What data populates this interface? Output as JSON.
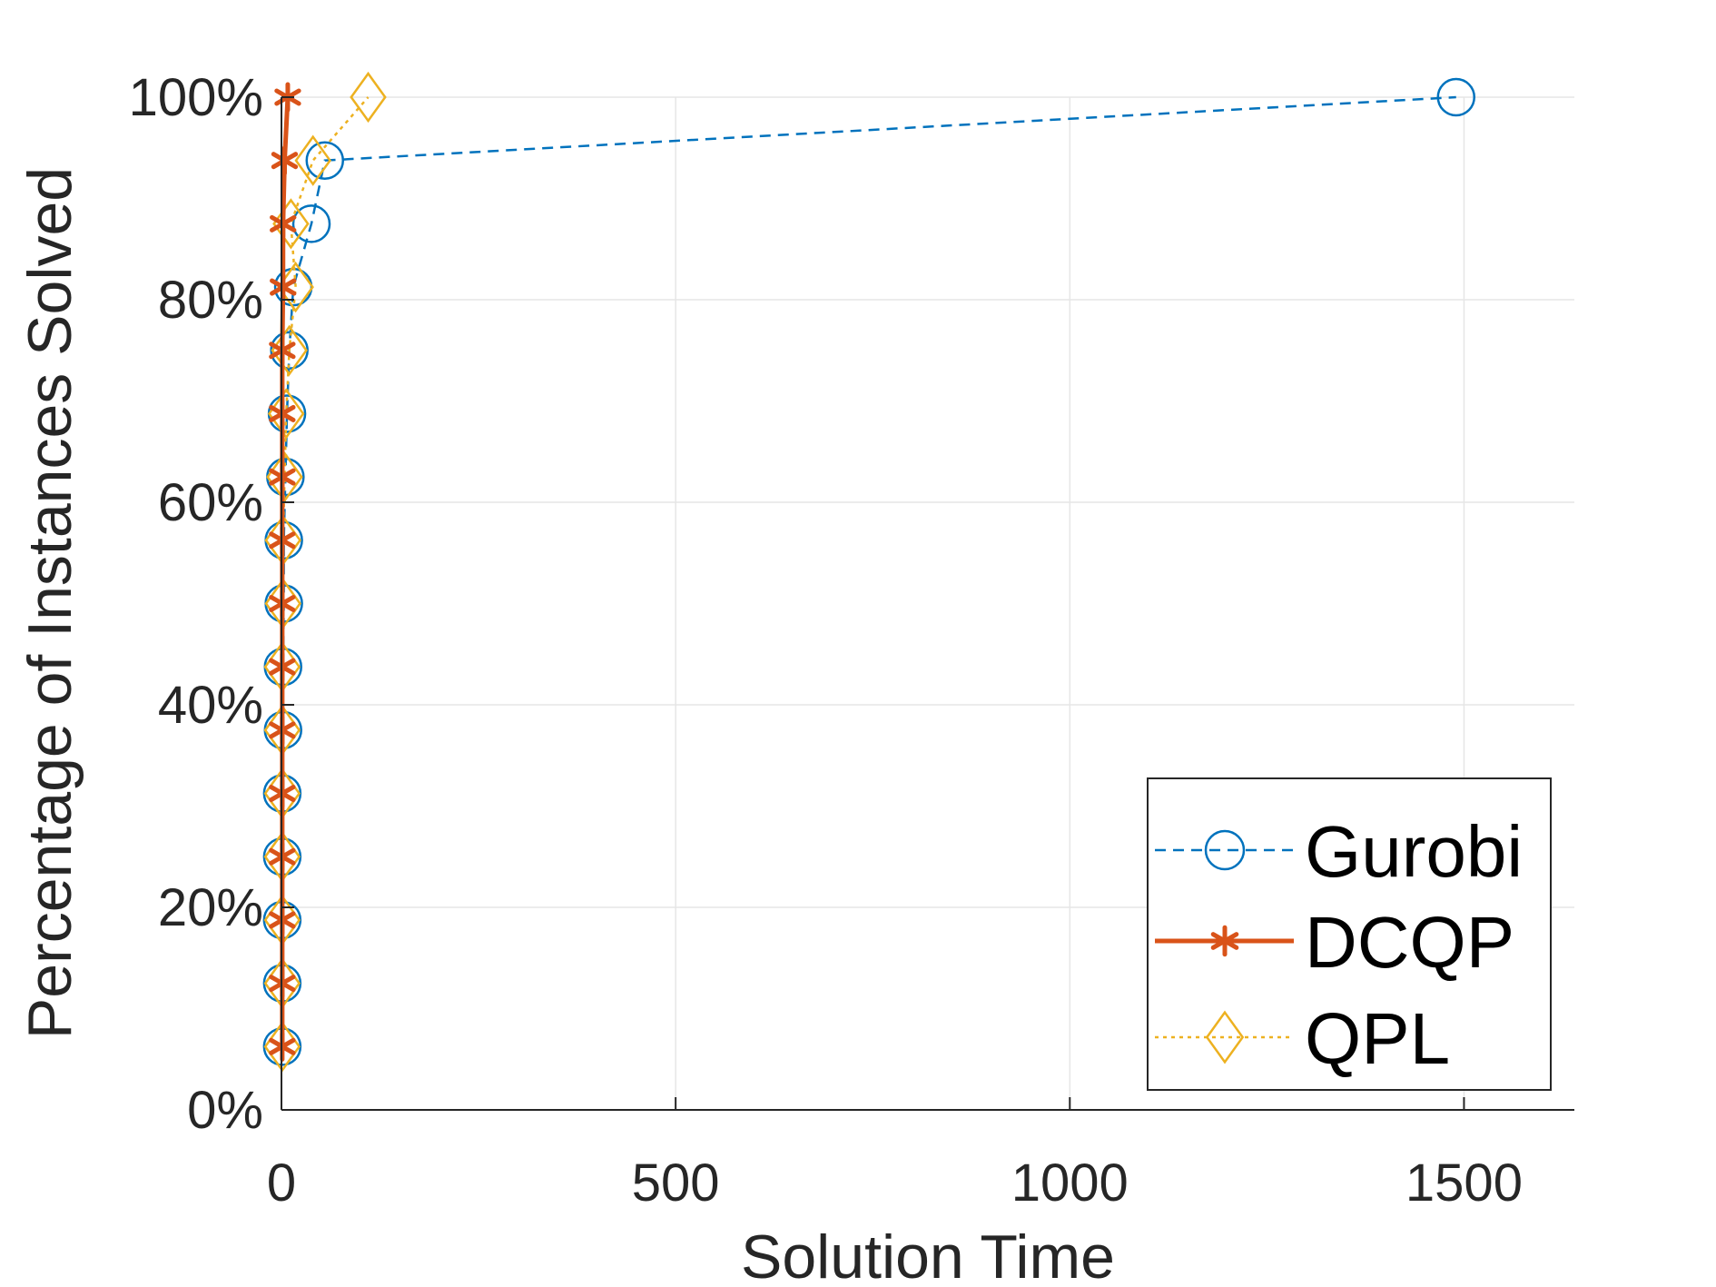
{
  "chart_data": {
    "type": "line",
    "title": "",
    "xlabel": "Solution Time",
    "ylabel": "Percentage of Instances Solved",
    "xlim": [
      0,
      1640
    ],
    "ylim": [
      0,
      100
    ],
    "xticks": [
      0,
      500,
      1000,
      1500
    ],
    "xtick_labels": [
      "0",
      "500",
      "1000",
      "1500"
    ],
    "yticks": [
      0,
      20,
      40,
      60,
      80,
      100
    ],
    "ytick_labels": [
      "0%",
      "20%",
      "40%",
      "60%",
      "80%",
      "100%"
    ],
    "grid": true,
    "legend_position": "bottom-right",
    "series": [
      {
        "name": "Gurobi",
        "color": "#0072BD",
        "line_style": "dashed",
        "marker": "circle",
        "x": [
          1,
          1,
          1,
          1,
          1,
          2,
          2,
          3,
          3,
          5,
          7,
          10,
          15,
          38,
          55,
          1490
        ],
        "y": [
          6.25,
          12.5,
          18.75,
          25,
          31.25,
          37.5,
          43.75,
          50,
          56.25,
          62.5,
          68.75,
          75,
          81.25,
          87.5,
          93.75,
          100
        ]
      },
      {
        "name": "DCQP",
        "color": "#D95319",
        "line_style": "solid",
        "marker": "asterisk",
        "x": [
          1,
          1,
          1,
          1,
          1,
          1,
          1,
          1,
          1,
          1,
          1,
          1,
          2,
          2,
          4,
          8
        ],
        "y": [
          6.25,
          12.5,
          18.75,
          25,
          31.25,
          37.5,
          43.75,
          50,
          56.25,
          62.5,
          68.75,
          75,
          81.25,
          87.5,
          93.75,
          100
        ]
      },
      {
        "name": "QPL",
        "color": "#EDB120",
        "line_style": "dotted",
        "marker": "diamond",
        "x": [
          1,
          1,
          1,
          1,
          1,
          1,
          1,
          2,
          2,
          4,
          6,
          10,
          18,
          12,
          40,
          110
        ],
        "y": [
          6.25,
          12.5,
          18.75,
          25,
          31.25,
          37.5,
          43.75,
          50,
          56.25,
          62.5,
          68.75,
          75,
          81.25,
          87.5,
          93.75,
          100
        ]
      }
    ]
  }
}
